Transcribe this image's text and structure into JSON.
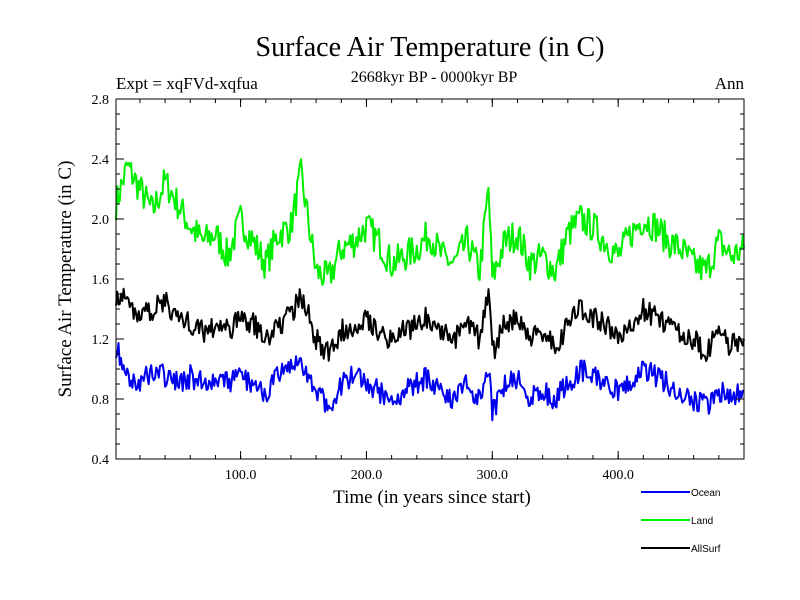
{
  "chart_data": {
    "type": "line",
    "title": "Surface Air Temperature (in C)",
    "subtitle": "2668kyr BP - 0000kyr BP",
    "expt_label": "Expt = xqFVd-xqfua",
    "season_label": "Ann",
    "xlabel": "Time (in years since start)",
    "ylabel": "Surface Air Temperature (in C)",
    "xlim": [
      1,
      500
    ],
    "ylim": [
      0.4,
      2.8
    ],
    "x_tick_labels": [
      "100.0",
      "200.0",
      "300.0",
      "400.0"
    ],
    "y_tick_labels": [
      "0.4",
      "0.8",
      "1.2",
      "1.6",
      "2.0",
      "2.4",
      "2.8"
    ],
    "series": [
      {
        "name": "Land",
        "color": "#00ee00",
        "x": [
          1,
          10,
          20,
          30,
          40,
          50,
          60,
          70,
          80,
          90,
          100,
          110,
          120,
          130,
          140,
          148,
          160,
          170,
          180,
          190,
          200,
          210,
          220,
          230,
          240,
          250,
          260,
          270,
          280,
          290,
          297,
          300,
          310,
          320,
          330,
          340,
          350,
          360,
          370,
          380,
          390,
          400,
          410,
          420,
          430,
          440,
          450,
          460,
          470,
          480,
          490,
          500
        ],
        "values": [
          2.1,
          2.35,
          2.2,
          2.05,
          2.25,
          2.1,
          1.95,
          1.85,
          1.9,
          1.75,
          2.0,
          1.85,
          1.7,
          1.9,
          1.95,
          2.3,
          1.65,
          1.6,
          1.8,
          1.85,
          1.95,
          1.85,
          1.7,
          1.75,
          1.8,
          1.9,
          1.75,
          1.7,
          1.85,
          1.65,
          2.2,
          1.6,
          1.85,
          1.9,
          1.7,
          1.75,
          1.65,
          1.9,
          2.0,
          1.95,
          1.85,
          1.75,
          1.9,
          2.0,
          1.95,
          1.85,
          1.8,
          1.7,
          1.65,
          1.85,
          1.75,
          1.8
        ]
      },
      {
        "name": "AllSurf",
        "color": "#000000",
        "x": [
          1,
          10,
          20,
          30,
          40,
          50,
          60,
          70,
          80,
          90,
          100,
          110,
          120,
          130,
          140,
          148,
          160,
          170,
          180,
          190,
          200,
          210,
          220,
          230,
          240,
          250,
          260,
          270,
          280,
          290,
          297,
          300,
          310,
          320,
          330,
          340,
          350,
          360,
          370,
          380,
          390,
          400,
          410,
          420,
          430,
          440,
          450,
          460,
          470,
          480,
          490,
          500
        ],
        "values": [
          1.5,
          1.45,
          1.35,
          1.4,
          1.45,
          1.35,
          1.3,
          1.25,
          1.3,
          1.25,
          1.35,
          1.3,
          1.2,
          1.3,
          1.35,
          1.5,
          1.2,
          1.1,
          1.25,
          1.3,
          1.35,
          1.25,
          1.2,
          1.25,
          1.3,
          1.35,
          1.25,
          1.2,
          1.3,
          1.2,
          1.55,
          1.1,
          1.3,
          1.35,
          1.2,
          1.25,
          1.15,
          1.3,
          1.4,
          1.35,
          1.3,
          1.2,
          1.3,
          1.4,
          1.35,
          1.3,
          1.25,
          1.2,
          1.1,
          1.25,
          1.15,
          1.2
        ]
      },
      {
        "name": "Ocean",
        "color": "#0000ee",
        "x": [
          1,
          10,
          20,
          30,
          40,
          50,
          60,
          70,
          80,
          90,
          100,
          110,
          120,
          130,
          140,
          148,
          160,
          170,
          180,
          190,
          200,
          210,
          220,
          230,
          240,
          250,
          260,
          270,
          280,
          290,
          297,
          300,
          310,
          320,
          330,
          340,
          350,
          360,
          370,
          380,
          390,
          400,
          410,
          420,
          430,
          440,
          450,
          460,
          470,
          480,
          490,
          500
        ],
        "values": [
          1.15,
          0.95,
          0.9,
          1.0,
          0.95,
          0.9,
          0.95,
          0.9,
          0.95,
          0.9,
          0.95,
          0.9,
          0.85,
          0.95,
          1.0,
          1.05,
          0.85,
          0.75,
          0.9,
          0.95,
          0.9,
          0.85,
          0.8,
          0.85,
          0.9,
          0.95,
          0.85,
          0.8,
          0.9,
          0.8,
          1.0,
          0.7,
          0.9,
          0.95,
          0.8,
          0.85,
          0.8,
          0.9,
          1.0,
          0.95,
          0.9,
          0.85,
          0.9,
          1.0,
          0.95,
          0.9,
          0.85,
          0.8,
          0.75,
          0.85,
          0.8,
          0.85
        ]
      }
    ],
    "legend": [
      "Ocean",
      "Land",
      "AllSurf"
    ],
    "legend_position": "bottom-right"
  }
}
